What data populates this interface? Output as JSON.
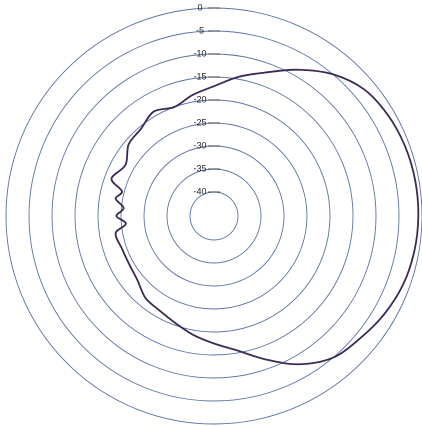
{
  "chart_data": {
    "type": "polar-line",
    "title": "",
    "radial_axis": {
      "min": -40,
      "max": 0,
      "ticks": [
        0,
        -5,
        -10,
        -15,
        -20,
        -25,
        -30,
        -35,
        -40
      ],
      "tick_labels": [
        "0",
        "-5",
        "-10",
        "-15",
        "-20",
        "-25",
        "-30",
        "-35",
        "-40"
      ],
      "grid": true,
      "label_position": "top"
    },
    "angle_convention": "degrees, 0 = up (12 o'clock), increasing clockwise",
    "series": [
      {
        "color": "#3b2a55",
        "points": [
          {
            "angle": 0,
            "value": -17.0
          },
          {
            "angle": 10,
            "value": -14.5
          },
          {
            "angle": 20,
            "value": -12.0
          },
          {
            "angle": 30,
            "value": -8.5
          },
          {
            "angle": 40,
            "value": -5.0
          },
          {
            "angle": 50,
            "value": -2.5
          },
          {
            "angle": 60,
            "value": -1.5
          },
          {
            "angle": 70,
            "value": -1.0
          },
          {
            "angle": 80,
            "value": -0.8
          },
          {
            "angle": 90,
            "value": -0.8
          },
          {
            "angle": 100,
            "value": -1.0
          },
          {
            "angle": 110,
            "value": -1.5
          },
          {
            "angle": 120,
            "value": -2.5
          },
          {
            "angle": 130,
            "value": -3.8
          },
          {
            "angle": 140,
            "value": -5.0
          },
          {
            "angle": 150,
            "value": -8.0
          },
          {
            "angle": 160,
            "value": -12.0
          },
          {
            "angle": 170,
            "value": -15.5
          },
          {
            "angle": 180,
            "value": -17.5
          },
          {
            "angle": 190,
            "value": -19.0
          },
          {
            "angle": 200,
            "value": -20.5
          },
          {
            "angle": 210,
            "value": -21.5
          },
          {
            "angle": 220,
            "value": -22.0
          },
          {
            "angle": 230,
            "value": -23.5
          },
          {
            "angle": 240,
            "value": -24.0
          },
          {
            "angle": 250,
            "value": -24.0
          },
          {
            "angle": 260,
            "value": -23.5
          },
          {
            "angle": 265,
            "value": -26.0
          },
          {
            "angle": 270,
            "value": -24.0
          },
          {
            "angle": 275,
            "value": -25.5
          },
          {
            "angle": 280,
            "value": -23.5
          },
          {
            "angle": 285,
            "value": -24.5
          },
          {
            "angle": 290,
            "value": -21.5
          },
          {
            "angle": 300,
            "value": -23.0
          },
          {
            "angle": 310,
            "value": -21.0
          },
          {
            "angle": 320,
            "value": -20.5
          },
          {
            "angle": 330,
            "value": -19.0
          },
          {
            "angle": 340,
            "value": -20.0
          },
          {
            "angle": 350,
            "value": -18.5
          }
        ]
      }
    ]
  }
}
